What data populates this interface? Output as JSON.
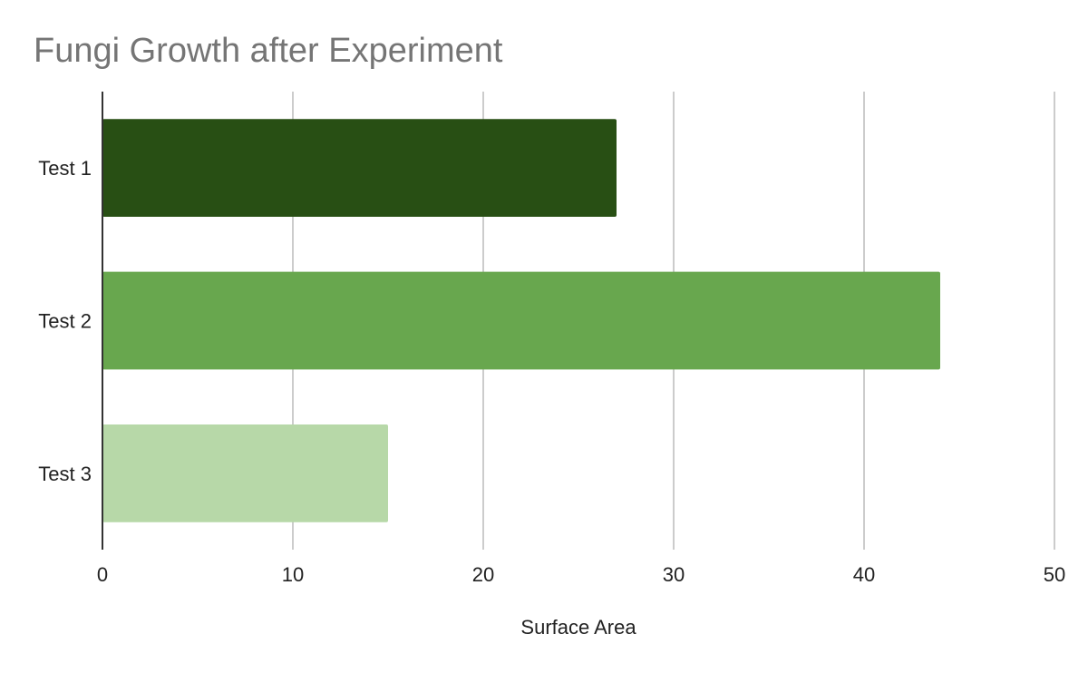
{
  "chart_data": {
    "type": "bar",
    "orientation": "horizontal",
    "title": "Fungi Growth after Experiment",
    "xlabel": "Surface Area",
    "ylabel": "",
    "categories": [
      "Test 1",
      "Test 2",
      "Test 3"
    ],
    "values": [
      27,
      44,
      15
    ],
    "bar_colors": [
      "#284f14",
      "#68a74e",
      "#b7d8a8"
    ],
    "xlim": [
      0,
      50
    ],
    "xticks": [
      "0",
      "10",
      "20",
      "30",
      "40",
      "50"
    ],
    "xtick_values": [
      0,
      10,
      20,
      30,
      40,
      50
    ],
    "grid": true,
    "legend": "none"
  },
  "colors": {
    "title": "#757575",
    "gridline": "#cccccc",
    "axis": "#333333",
    "text": "#222222"
  }
}
